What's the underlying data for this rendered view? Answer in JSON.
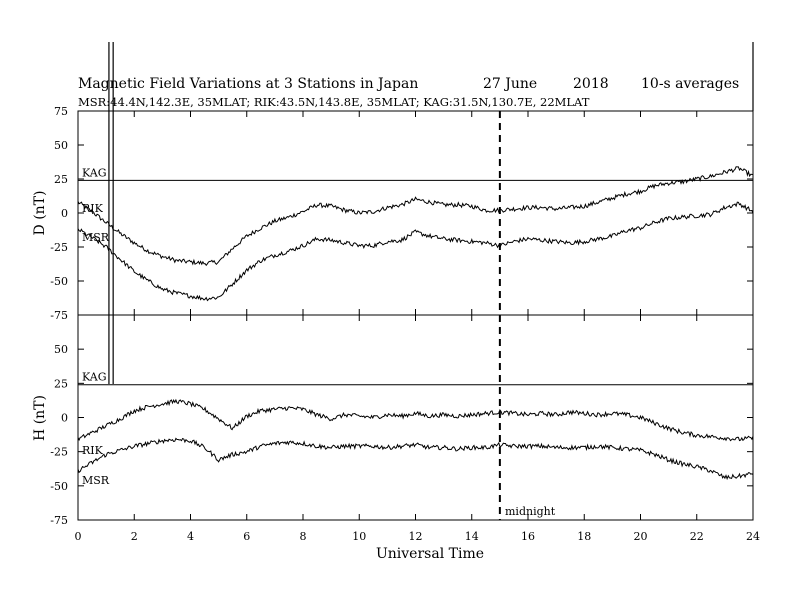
{
  "header": {
    "title": "Magnetic Field Variations at 3 Stations in Japan",
    "date_day": "27 June",
    "date_year": "2018",
    "averaging": "10-s averages",
    "subtitle": "MSR:44.4N,142.3E, 35MLAT;  RIK:43.5N,143.8E, 35MLAT;  KAG:31.5N,130.7E, 22MLAT"
  },
  "chart_data": {
    "type": "line",
    "xlabel": "Universal Time",
    "xlim": [
      0,
      24
    ],
    "xticks": [
      "0",
      "2",
      "4",
      "6",
      "8",
      "10",
      "12",
      "14",
      "16",
      "18",
      "20",
      "22",
      "24"
    ],
    "annotation": {
      "x": 15,
      "text": "midnight"
    },
    "panels": [
      {
        "ylabel": "D (nT)",
        "ylim": [
          -75,
          75
        ],
        "yticks": [
          "75",
          "50",
          "25",
          "0",
          "-25",
          "-50",
          "-75"
        ],
        "series": [
          {
            "name": "KAG",
            "x": [
              0,
              1.1,
              1.25,
              24
            ],
            "y": [
              24,
              24,
              24,
              24
            ]
          },
          {
            "name": "RIK",
            "x": [
              0,
              0.5,
              1,
              1.5,
              2,
              2.5,
              3,
              3.5,
              4,
              4.5,
              5,
              5.5,
              6,
              6.5,
              7,
              7.5,
              8,
              8.5,
              9,
              9.5,
              10,
              10.5,
              11,
              11.5,
              12,
              12.5,
              13,
              13.5,
              14,
              14.5,
              15,
              15.5,
              16,
              16.5,
              17,
              17.5,
              18,
              18.5,
              19,
              19.5,
              20,
              20.5,
              21,
              21.5,
              22,
              22.5,
              23,
              23.5,
              24
            ],
            "y": [
              8,
              1,
              -7,
              -15,
              -22,
              -28,
              -32,
              -35,
              -36,
              -37,
              -36,
              -26,
              -17,
              -11,
              -6,
              -3,
              1,
              6,
              5,
              2,
              0,
              1,
              4,
              6,
              10,
              8,
              6,
              6,
              5,
              2,
              2,
              3,
              4,
              4,
              3,
              4,
              5,
              8,
              11,
              14,
              16,
              20,
              22,
              23,
              25,
              27,
              30,
              33,
              27
            ]
          },
          {
            "name": "MSR",
            "x": [
              0,
              0.5,
              1,
              1.5,
              2,
              2.5,
              3,
              3.5,
              4,
              4.5,
              5,
              5.5,
              6,
              6.5,
              7,
              7.5,
              8,
              8.5,
              9,
              9.5,
              10,
              10.5,
              11,
              11.5,
              12,
              12.5,
              13,
              13.5,
              14,
              14.5,
              15,
              15.5,
              16,
              16.5,
              17,
              17.5,
              18,
              18.5,
              19,
              19.5,
              20,
              20.5,
              21,
              21.5,
              22,
              22.5,
              23,
              23.5,
              24
            ],
            "y": [
              -12,
              -18,
              -25,
              -34,
              -43,
              -50,
              -56,
              -59,
              -61,
              -63,
              -62,
              -52,
              -42,
              -35,
              -31,
              -28,
              -24,
              -19,
              -20,
              -22,
              -24,
              -24,
              -21,
              -20,
              -14,
              -17,
              -19,
              -20,
              -21,
              -22,
              -24,
              -21,
              -19,
              -20,
              -21,
              -22,
              -21,
              -19,
              -17,
              -13,
              -11,
              -7,
              -4,
              -3,
              -2,
              -1,
              4,
              7,
              1
            ]
          }
        ]
      },
      {
        "ylabel": "H (nT)",
        "ylim": [
          -75,
          75
        ],
        "yticks": [
          "75",
          "50",
          "25",
          "0",
          "-25",
          "-50",
          "-75"
        ],
        "series": [
          {
            "name": "KAG",
            "x": [
              0,
              1.1,
              1.25,
              24
            ],
            "y": [
              24,
              24,
              24,
              24
            ]
          },
          {
            "name": "RIK",
            "x": [
              0,
              0.5,
              1,
              1.5,
              2,
              2.5,
              3,
              3.5,
              4,
              4.5,
              5,
              5.5,
              6,
              6.5,
              7,
              7.5,
              8,
              8.5,
              9,
              9.5,
              10,
              10.5,
              11,
              11.5,
              12,
              12.5,
              13,
              13.5,
              14,
              14.5,
              15,
              15.5,
              16,
              16.5,
              17,
              17.5,
              18,
              18.5,
              19,
              19.5,
              20,
              20.5,
              21,
              21.5,
              22,
              22.5,
              23,
              23.5,
              24
            ],
            "y": [
              -16,
              -11,
              -6,
              -1,
              5,
              8,
              10,
              12,
              10,
              6,
              -1,
              -8,
              1,
              5,
              6,
              7,
              6,
              2,
              -1,
              2,
              1,
              0,
              2,
              1,
              3,
              1,
              2,
              1,
              2,
              3,
              4,
              3,
              2,
              3,
              2,
              4,
              3,
              2,
              3,
              2,
              0,
              -4,
              -8,
              -11,
              -13,
              -14,
              -15,
              -16,
              -15
            ]
          },
          {
            "name": "MSR",
            "x": [
              0,
              0.5,
              1,
              1.5,
              2,
              2.5,
              3,
              3.5,
              4,
              4.5,
              5,
              5.5,
              6,
              6.5,
              7,
              7.5,
              8,
              8.5,
              9,
              9.5,
              10,
              10.5,
              11,
              11.5,
              12,
              12.5,
              13,
              13.5,
              14,
              14.5,
              15,
              15.5,
              16,
              16.5,
              17,
              17.5,
              18,
              18.5,
              19,
              19.5,
              20,
              20.5,
              21,
              21.5,
              22,
              22.5,
              23,
              23.5,
              24
            ],
            "y": [
              -39,
              -33,
              -27,
              -24,
              -21,
              -19,
              -17,
              -16,
              -17,
              -22,
              -31,
              -27,
              -25,
              -21,
              -19,
              -18,
              -19,
              -21,
              -22,
              -21,
              -21,
              -21,
              -22,
              -21,
              -20,
              -22,
              -22,
              -23,
              -22,
              -22,
              -20,
              -21,
              -21,
              -21,
              -22,
              -22,
              -22,
              -21,
              -22,
              -23,
              -24,
              -27,
              -31,
              -34,
              -36,
              -39,
              -44,
              -43,
              -41
            ]
          }
        ]
      }
    ]
  }
}
